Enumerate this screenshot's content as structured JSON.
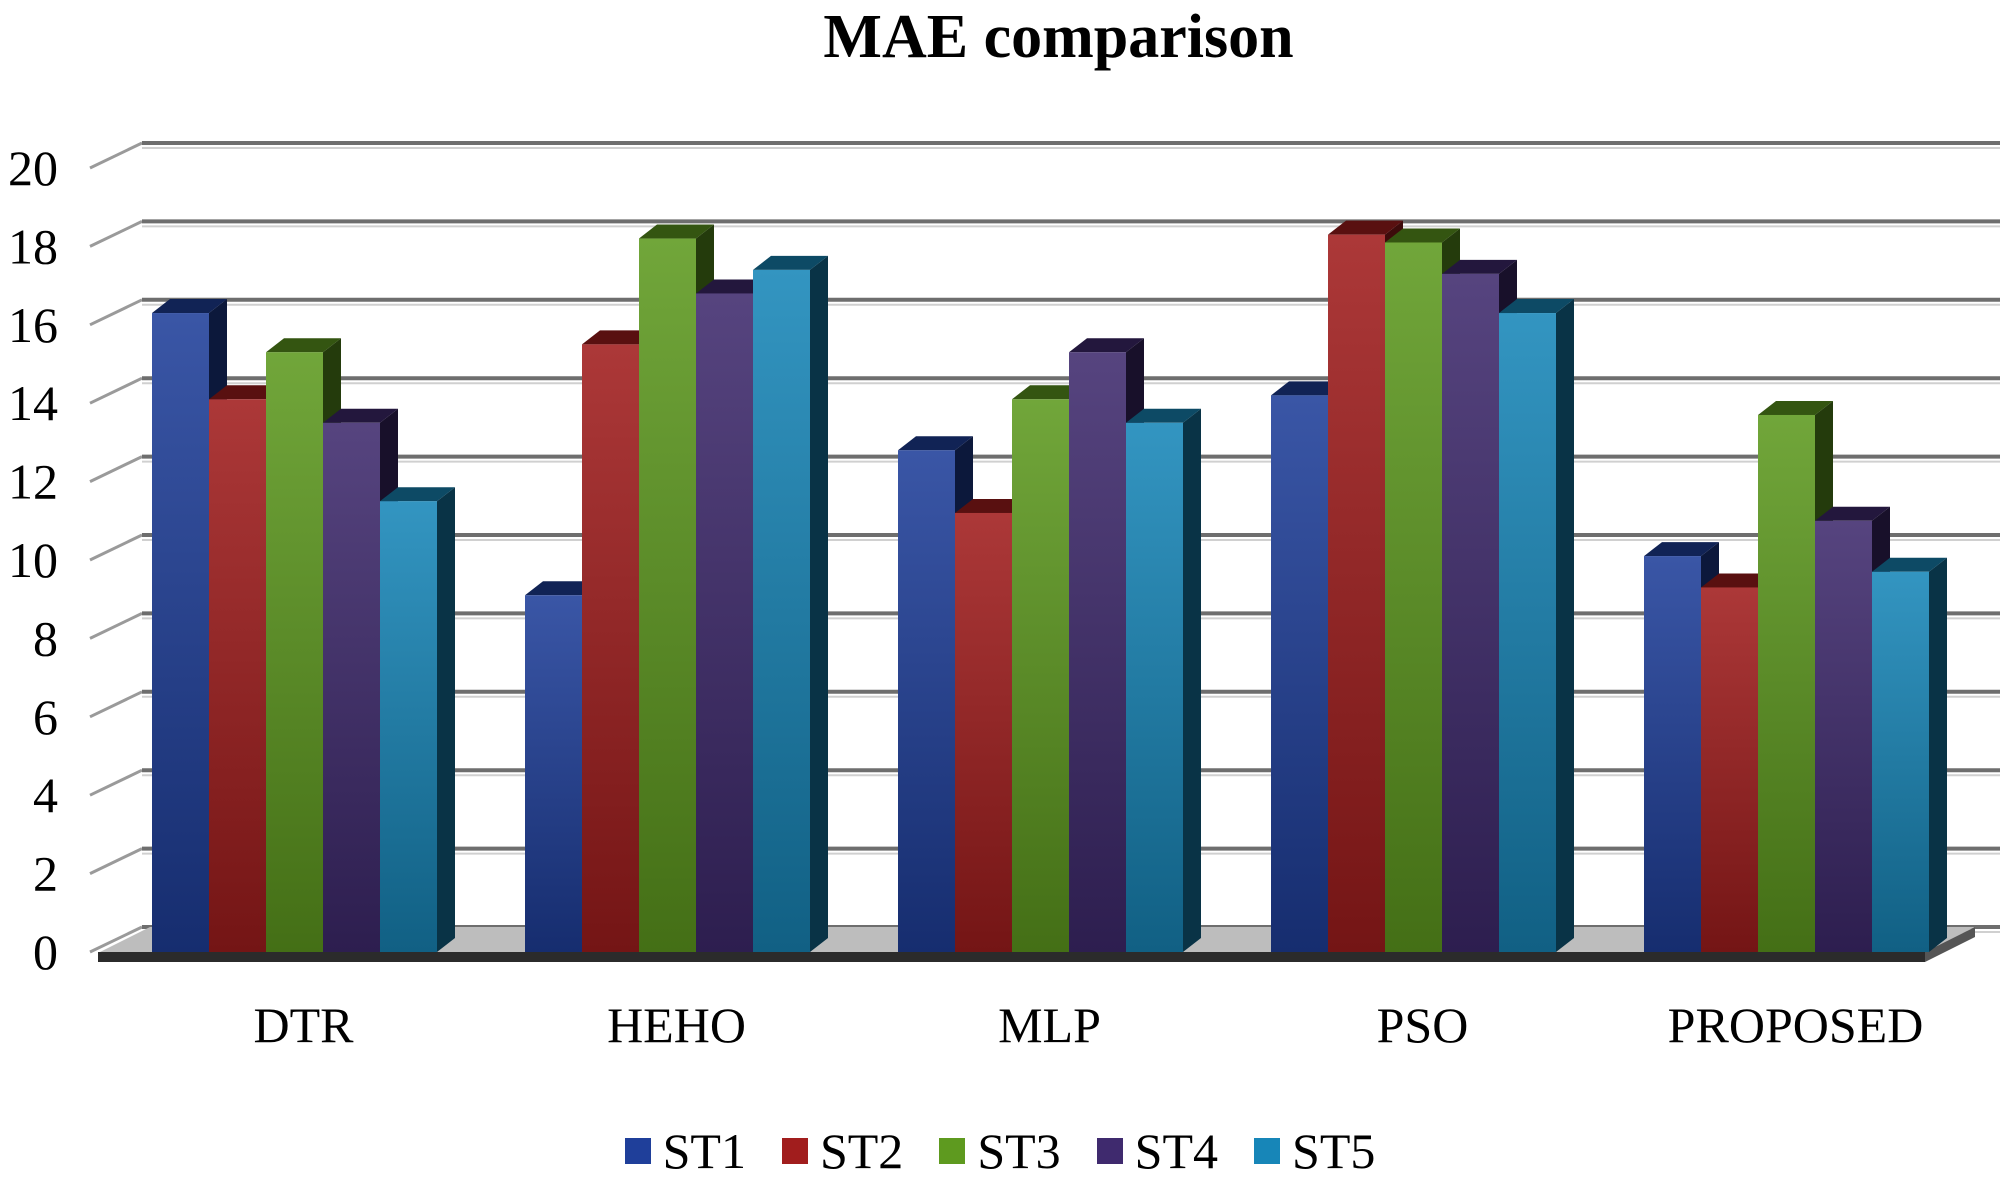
{
  "chart_data": {
    "type": "bar",
    "title": "MAE comparison",
    "categories": [
      "DTR",
      "HEHO",
      "MLP",
      "PSO",
      "PROPOSED"
    ],
    "series": [
      {
        "name": "ST1",
        "color": "#1f3f9a",
        "values": [
          16.3,
          9.1,
          12.8,
          14.2,
          10.1
        ]
      },
      {
        "name": "ST2",
        "color": "#a11d1d",
        "values": [
          14.1,
          15.5,
          11.2,
          18.3,
          9.3
        ]
      },
      {
        "name": "ST3",
        "color": "#5e9a1f",
        "values": [
          15.3,
          18.2,
          14.1,
          18.1,
          13.7
        ]
      },
      {
        "name": "ST4",
        "color": "#3f2a6e",
        "values": [
          13.5,
          16.8,
          15.3,
          17.3,
          11.0
        ]
      },
      {
        "name": "ST5",
        "color": "#1786b8",
        "values": [
          11.5,
          17.4,
          13.5,
          16.3,
          9.7
        ]
      }
    ],
    "yticks": [
      "0",
      "2",
      "4",
      "6",
      "8",
      "10",
      "12",
      "14",
      "16",
      "18",
      "20"
    ],
    "ylim": [
      0,
      20
    ],
    "grid": true,
    "legend_position": "bottom"
  }
}
